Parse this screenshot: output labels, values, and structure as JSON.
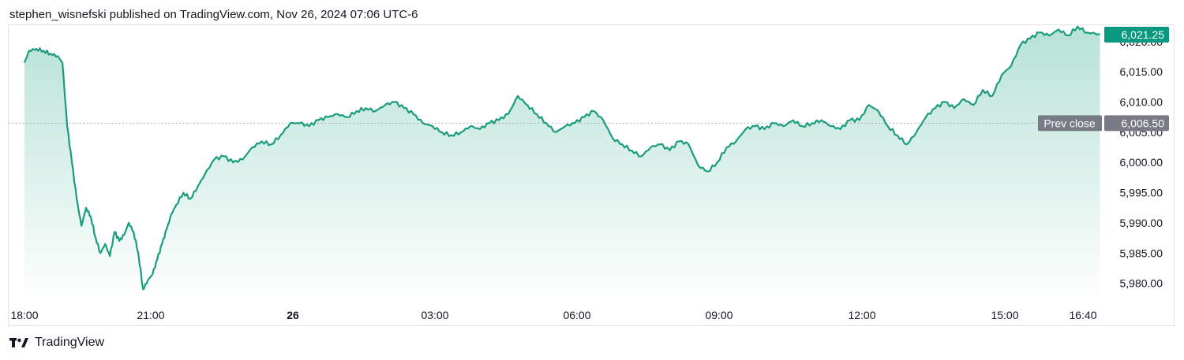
{
  "header": {
    "published_line": "stephen_wisnefski published on TradingView.com, Nov 26, 2024 07:06 UTC-6"
  },
  "footer": {
    "brand": "TradingView"
  },
  "colors": {
    "line": "#1a9c7f",
    "fill_top": "#b7e2d6",
    "fill_bottom": "#ffffff",
    "badge_green": "#089981",
    "badge_gray": "#787b86",
    "axis_text": "#131722",
    "dotted": "#9598a1"
  },
  "chart_data": {
    "type": "area",
    "x_ticks": [
      {
        "label": "18:00",
        "bold": false
      },
      {
        "label": "21:00",
        "bold": false
      },
      {
        "label": "26",
        "bold": true
      },
      {
        "label": "03:00",
        "bold": false
      },
      {
        "label": "06:00",
        "bold": false
      },
      {
        "label": "09:00",
        "bold": false
      },
      {
        "label": "12:00",
        "bold": false
      },
      {
        "label": "15:00",
        "bold": false
      },
      {
        "label": "16:40",
        "bold": false
      }
    ],
    "y_ticks": [
      "5,980.00",
      "5,985.00",
      "5,990.00",
      "5,995.00",
      "6,000.00",
      "6,005.00",
      "6,010.00",
      "6,015.00",
      "6,020.00"
    ],
    "y_range": [
      5978,
      6024
    ],
    "x_range_hours": [
      0,
      22.67
    ],
    "prev_close": {
      "label": "Prev close",
      "value": 6006.5,
      "value_label": "6,006.50"
    },
    "last_price": {
      "value": 6021.25,
      "value_label": "6,021.25"
    },
    "series": [
      {
        "x": [
          0,
          0.1,
          0.25,
          0.4,
          0.55,
          0.7,
          0.8,
          0.9,
          1.0,
          1.1,
          1.2,
          1.3,
          1.4,
          1.5,
          1.6,
          1.7,
          1.8,
          1.9,
          2.0,
          2.1,
          2.2,
          2.3,
          2.4,
          2.5,
          2.6,
          2.7,
          2.8,
          2.9,
          3.0,
          3.1,
          3.2,
          3.35,
          3.5,
          3.65,
          3.8,
          4.0,
          4.2,
          4.4,
          4.6,
          4.8,
          5.0,
          5.2,
          5.4,
          5.6,
          5.8,
          6.0,
          6.2,
          6.4,
          6.6,
          6.8,
          7.0,
          7.2,
          7.4,
          7.6,
          7.8,
          8.0,
          8.2,
          8.4,
          8.6,
          8.8,
          9.0,
          9.2,
          9.4,
          9.6,
          9.8,
          10.0,
          10.2,
          10.4,
          10.6,
          10.8,
          11.0,
          11.2,
          11.4,
          11.6,
          11.8,
          12.0,
          12.2,
          12.4,
          12.6,
          12.8,
          13.0,
          13.2,
          13.4,
          13.6,
          13.8,
          14.0,
          14.2,
          14.4,
          14.6,
          14.8,
          15.0,
          15.2,
          15.4,
          15.6,
          15.8,
          16.0,
          16.2,
          16.4,
          16.6,
          16.8,
          17.0,
          17.2,
          17.4,
          17.6,
          17.8,
          18.0,
          18.2,
          18.4,
          18.6,
          18.8,
          19.0,
          19.2,
          19.4,
          19.6,
          19.8,
          20.0,
          20.2,
          20.4,
          20.6,
          20.8,
          21.0,
          21.2,
          21.4,
          21.6,
          21.8,
          22.0,
          22.2,
          22.4,
          22.67,
          22.9,
          23.1,
          23.3,
          23.5
        ],
        "y": [
          6016.5,
          6018.5,
          6018.8,
          6018.5,
          6018.0,
          6017.6,
          6016.5,
          6006.0,
          6000.0,
          5994.0,
          5989.5,
          5992.5,
          5991.0,
          5987.5,
          5985.0,
          5986.5,
          5984.5,
          5988.5,
          5987.0,
          5988.0,
          5990.0,
          5988.5,
          5985.0,
          5979.0,
          5980.5,
          5981.5,
          5984.0,
          5986.5,
          5989.0,
          5991.5,
          5993.0,
          5995.0,
          5994.0,
          5996.0,
          5998.0,
          6000.5,
          6001.0,
          6000.0,
          6000.5,
          6002.5,
          6003.5,
          6003.0,
          6004.5,
          6006.5,
          6006.5,
          6006.0,
          6007.0,
          6007.5,
          6008.0,
          6007.5,
          6008.5,
          6009.0,
          6008.5,
          6009.5,
          6010.0,
          6009.0,
          6008.0,
          6006.5,
          6006.0,
          6005.0,
          6004.5,
          6005.0,
          6006.0,
          6005.5,
          6006.5,
          6007.0,
          6008.0,
          6011.0,
          6009.5,
          6008.0,
          6006.5,
          6005.0,
          6006.0,
          6006.5,
          6007.5,
          6008.5,
          6007.0,
          6004.0,
          6003.0,
          6002.0,
          6001.0,
          6002.5,
          6003.0,
          6002.0,
          6003.5,
          6003.0,
          5999.5,
          5998.5,
          6000.0,
          6002.5,
          6003.5,
          6005.5,
          6006.0,
          6005.5,
          6006.5,
          6006.0,
          6007.0,
          6006.0,
          6006.5,
          6007.0,
          6006.0,
          6005.5,
          6007.0,
          6007.0,
          6009.5,
          6008.5,
          6006.0,
          6004.5,
          6003.0,
          6005.0,
          6007.5,
          6009.0,
          6010.0,
          6009.0,
          6010.5,
          6009.5,
          6012.0,
          6011.0,
          6014.5,
          6016.0,
          6019.5,
          6020.5,
          6021.5,
          6021.0,
          6022.0,
          6021.0,
          6022.5,
          6021.5,
          6021.25,
          6021.25,
          6021.25,
          6021.25,
          6021.25
        ],
        "max_hour": 22.67
      }
    ]
  }
}
